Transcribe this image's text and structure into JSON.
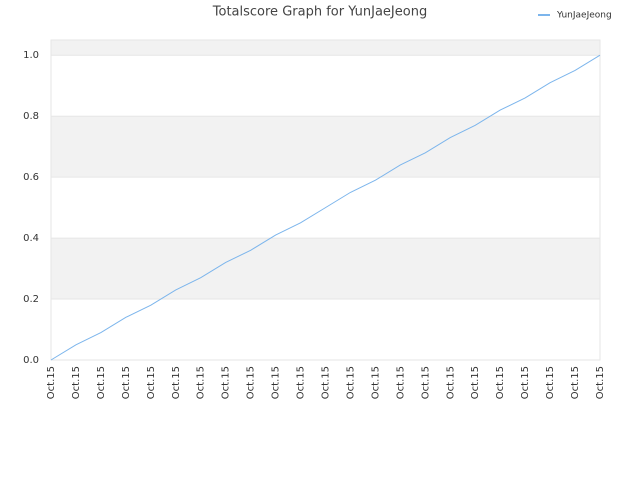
{
  "chart_data": {
    "type": "line",
    "title": "Totalscore Graph for YunJaeJeong",
    "categories": [
      "Oct.15",
      "Oct.15",
      "Oct.15",
      "Oct.15",
      "Oct.15",
      "Oct.15",
      "Oct.15",
      "Oct.15",
      "Oct.15",
      "Oct.15",
      "Oct.15",
      "Oct.15",
      "Oct.15",
      "Oct.15",
      "Oct.15",
      "Oct.15",
      "Oct.15",
      "Oct.15",
      "Oct.15",
      "Oct.15",
      "Oct.15",
      "Oct.15",
      "Oct.15"
    ],
    "series": [
      {
        "name": "YunJaeJeong",
        "color": "#7cb5ec",
        "values": [
          0,
          0.05,
          0.09,
          0.14,
          0.18,
          0.23,
          0.27,
          0.32,
          0.36,
          0.41,
          0.45,
          0.5,
          0.55,
          0.59,
          0.64,
          0.68,
          0.73,
          0.77,
          0.82,
          0.86,
          0.91,
          0.95,
          1.0
        ]
      }
    ],
    "ylim": [
      0,
      1.05
    ],
    "yticks": [
      {
        "value": 0,
        "label": "0.0"
      },
      0.2,
      0.4,
      0.6,
      0.8,
      {
        "value": 1,
        "label": "1.0"
      }
    ],
    "grid": true,
    "legend": "top-right"
  }
}
